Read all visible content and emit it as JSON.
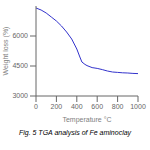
{
  "chart_data": {
    "type": "line",
    "xlabel": "Temperature °C",
    "ylabel": "Weight loss (%)",
    "caption": "Fig. 5 TGA analysis of Fe aminoclay",
    "color": "#3333cc",
    "xlim": [
      0,
      1000
    ],
    "ylim": [
      3000,
      7500
    ],
    "xticks": [
      0,
      200,
      400,
      600,
      800,
      1000
    ],
    "yticks": [
      3000,
      4500,
      6000
    ],
    "x": [
      0,
      50,
      100,
      150,
      200,
      250,
      300,
      350,
      400,
      430,
      450,
      480,
      500,
      550,
      600,
      650,
      700,
      750,
      800,
      850,
      900,
      950,
      1000
    ],
    "values": [
      7400,
      7300,
      7150,
      6950,
      6750,
      6500,
      6200,
      5850,
      5350,
      4950,
      4700,
      4580,
      4520,
      4420,
      4380,
      4320,
      4250,
      4200,
      4180,
      4160,
      4150,
      4130,
      4120
    ]
  }
}
